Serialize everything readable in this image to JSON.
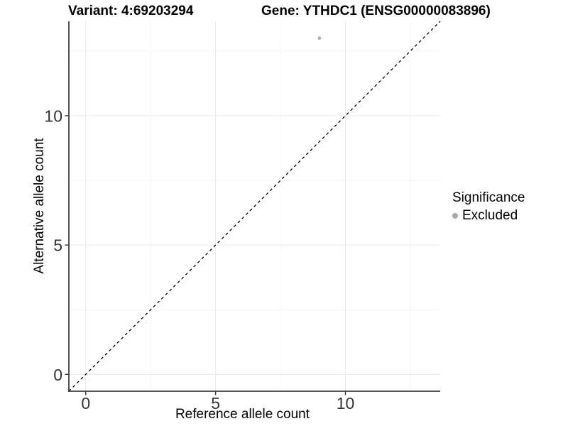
{
  "chart_data": {
    "type": "scatter",
    "title_left": "Variant: 4:69203294",
    "title_right": "Gene: YTHDC1 (ENSG00000083896)",
    "xlabel": "Reference allele count",
    "ylabel": "Alternative allele count",
    "xlim": [
      -0.65,
      13.65
    ],
    "ylim": [
      -0.65,
      13.65
    ],
    "xticks": [
      0,
      5,
      10
    ],
    "yticks": [
      0,
      5,
      10
    ],
    "minor_xticks": [
      2.5,
      7.5,
      12.5
    ],
    "minor_yticks": [
      2.5,
      7.5,
      12.5
    ],
    "grid": true,
    "series": [
      {
        "name": "Excluded",
        "points": [
          {
            "x": 9,
            "y": 13
          }
        ]
      }
    ],
    "reference_line": {
      "type": "identity",
      "slope": 1,
      "intercept": 0,
      "style": "dashed",
      "color": "#000000"
    },
    "legend": {
      "title": "Significance",
      "position": "right",
      "entries": [
        {
          "label": "Excluded",
          "color": "#a8a8a8"
        }
      ]
    },
    "colors": {
      "point": "#b0b0b0",
      "grid_major": "#e9e9e9",
      "grid_minor": "#f4f4f4",
      "axis_line": "#3f3f3f",
      "tick": "#333333",
      "tick_label": "#333333",
      "background": "#ffffff"
    }
  }
}
